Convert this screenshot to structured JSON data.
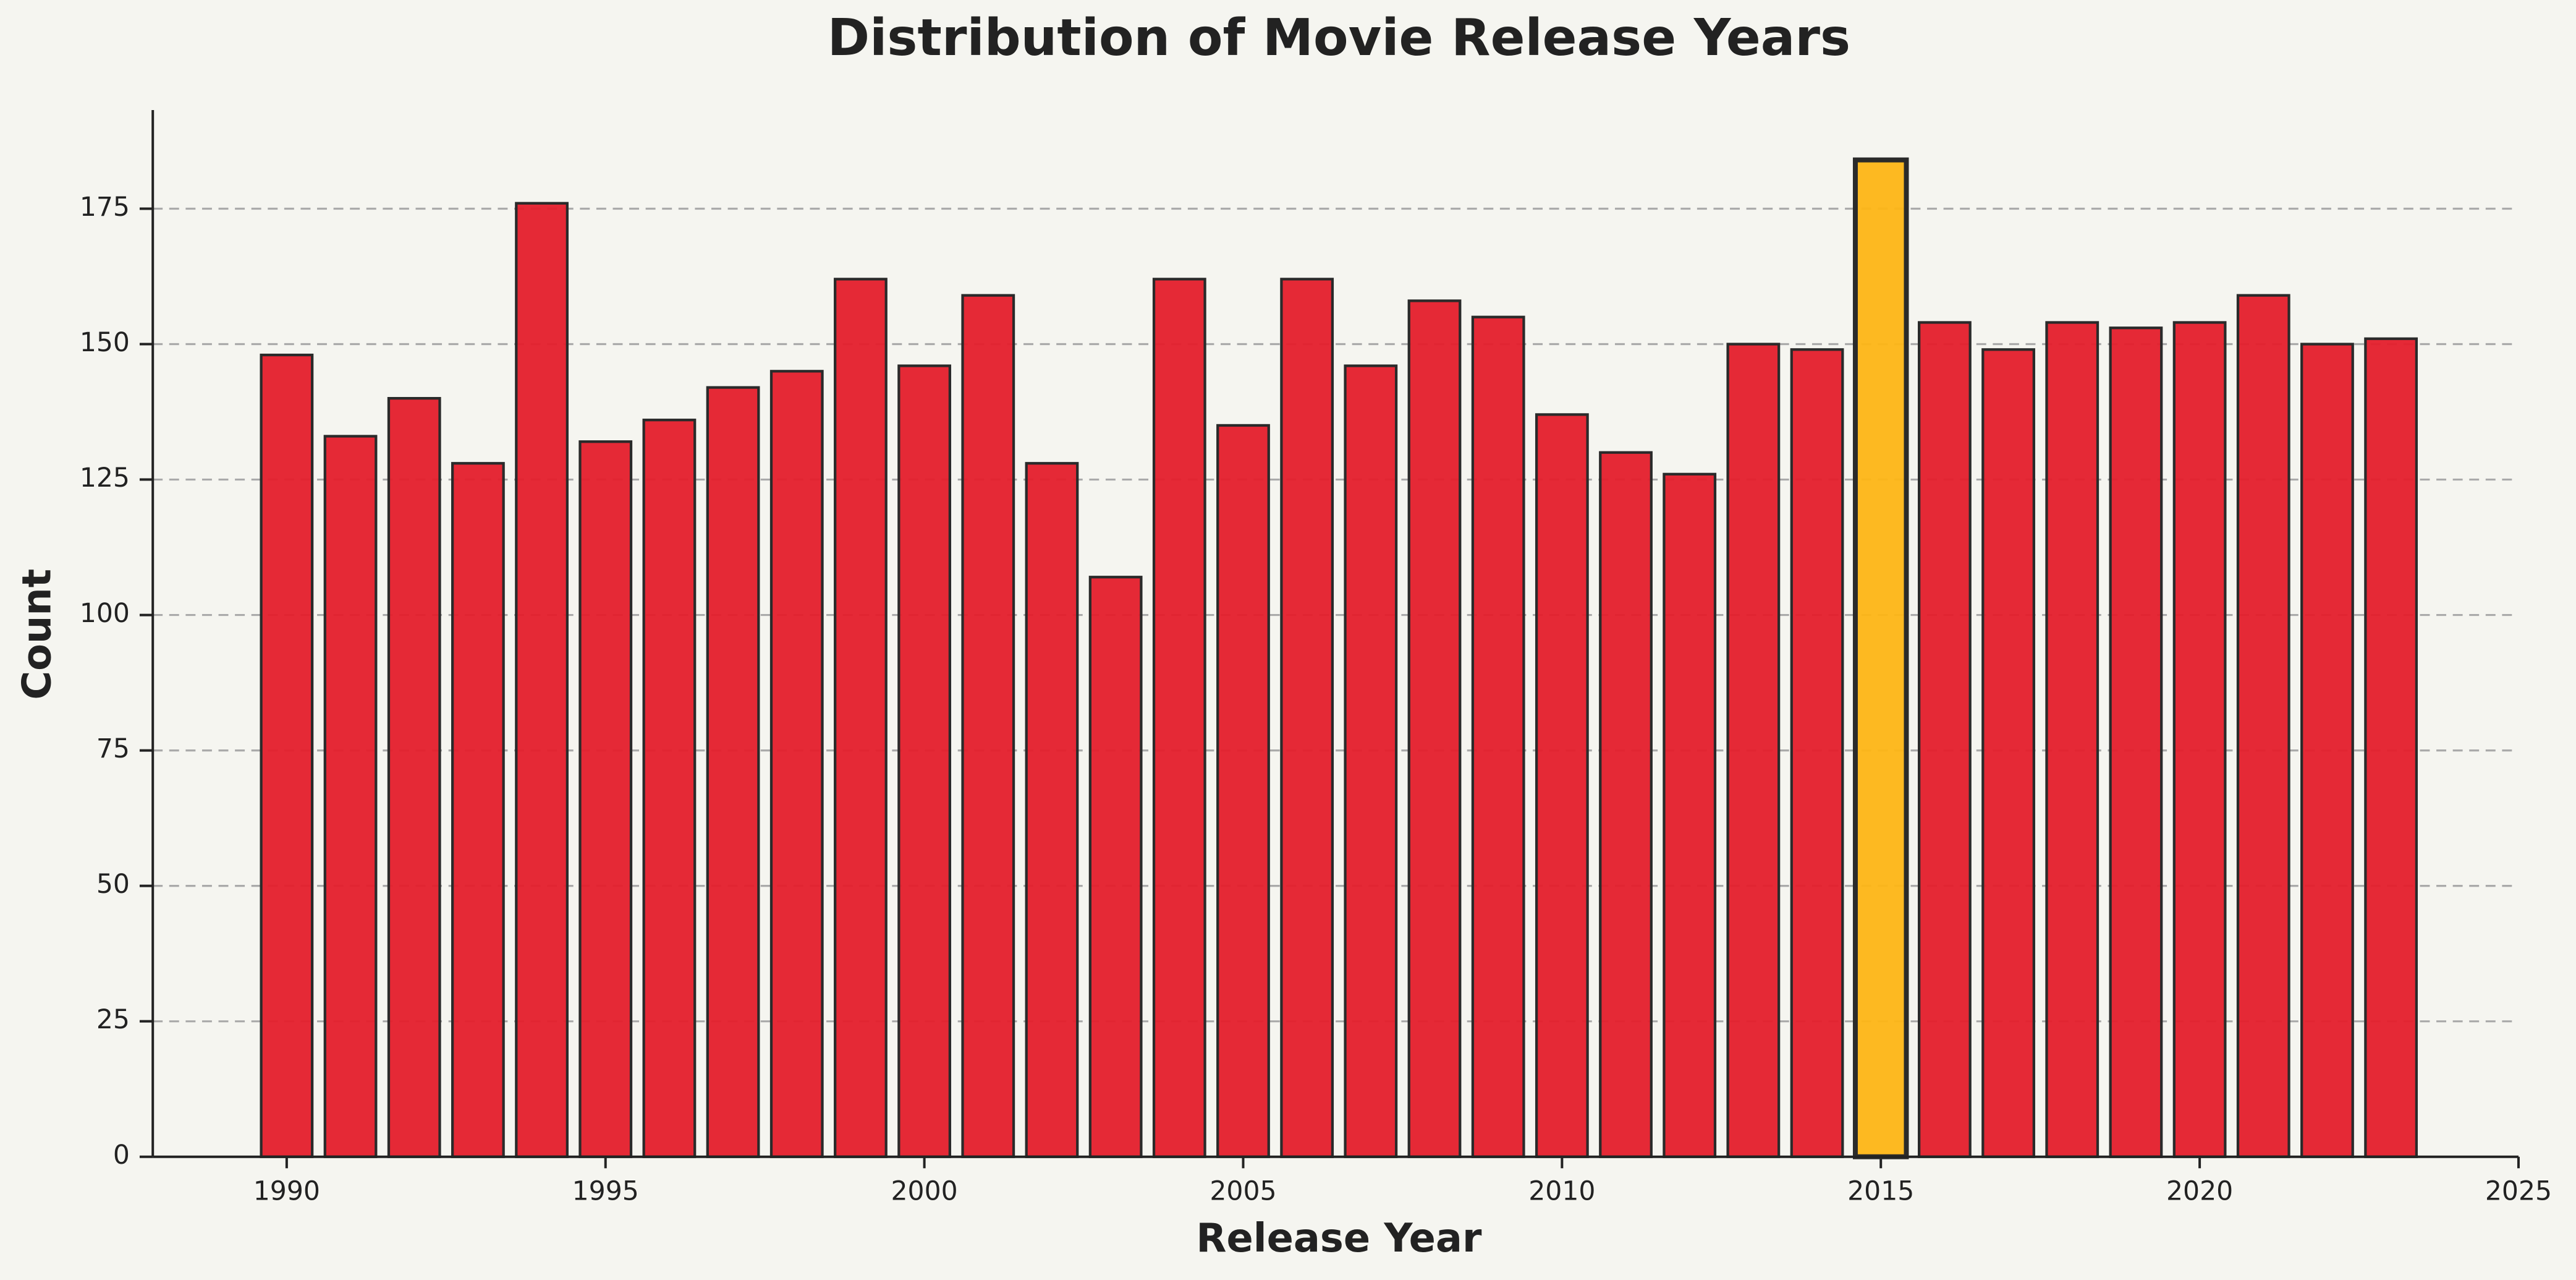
{
  "chart_data": {
    "type": "bar",
    "title": "Distribution of Movie Release Years",
    "x_label": "Release Year",
    "y_label": "Count",
    "x": [
      1990,
      1991,
      1992,
      1993,
      1994,
      1995,
      1996,
      1997,
      1998,
      1999,
      2000,
      2001,
      2002,
      2003,
      2004,
      2005,
      2006,
      2007,
      2008,
      2009,
      2010,
      2011,
      2012,
      2013,
      2014,
      2015,
      2016,
      2017,
      2018,
      2019,
      2020,
      2021,
      2022,
      2023
    ],
    "values": [
      148,
      133,
      140,
      128,
      176,
      132,
      136,
      142,
      145,
      162,
      146,
      159,
      128,
      107,
      162,
      135,
      162,
      146,
      158,
      155,
      137,
      130,
      126,
      150,
      149,
      184,
      154,
      149,
      154,
      153,
      154,
      159,
      150,
      151
    ],
    "colors": [
      "#e41e2b",
      "#e41e2b",
      "#e41e2b",
      "#e41e2b",
      "#e41e2b",
      "#e41e2b",
      "#e41e2b",
      "#e41e2b",
      "#e41e2b",
      "#e41e2b",
      "#e41e2b",
      "#e41e2b",
      "#e41e2b",
      "#e41e2b",
      "#e41e2b",
      "#e41e2b",
      "#e41e2b",
      "#e41e2b",
      "#e41e2b",
      "#e41e2b",
      "#e41e2b",
      "#e41e2b",
      "#e41e2b",
      "#e41e2b",
      "#e41e2b",
      "#fdb515",
      "#e41e2b",
      "#e41e2b",
      "#e41e2b",
      "#e41e2b",
      "#e41e2b",
      "#e41e2b",
      "#e41e2b",
      "#e41e2b"
    ],
    "xlim": [
      1987.9,
      2025
    ],
    "xticks": [
      1990,
      1995,
      2000,
      2005,
      2010,
      2015,
      2020,
      2025
    ],
    "ylim": [
      0,
      193.2
    ],
    "yticks": [
      0,
      25,
      50,
      75,
      100,
      125,
      150,
      175
    ],
    "grid": true
  }
}
